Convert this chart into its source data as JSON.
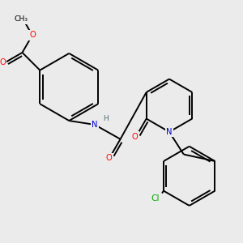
{
  "background_color": "#ebebeb",
  "bond_color": "#000000",
  "atom_colors": {
    "O": "#ff0000",
    "N": "#0000cc",
    "Cl": "#00aa00",
    "H": "#507070",
    "C": "#000000"
  },
  "figsize": [
    3.0,
    3.0
  ],
  "dpi": 100,
  "lw": 1.4,
  "fs": 7.2
}
